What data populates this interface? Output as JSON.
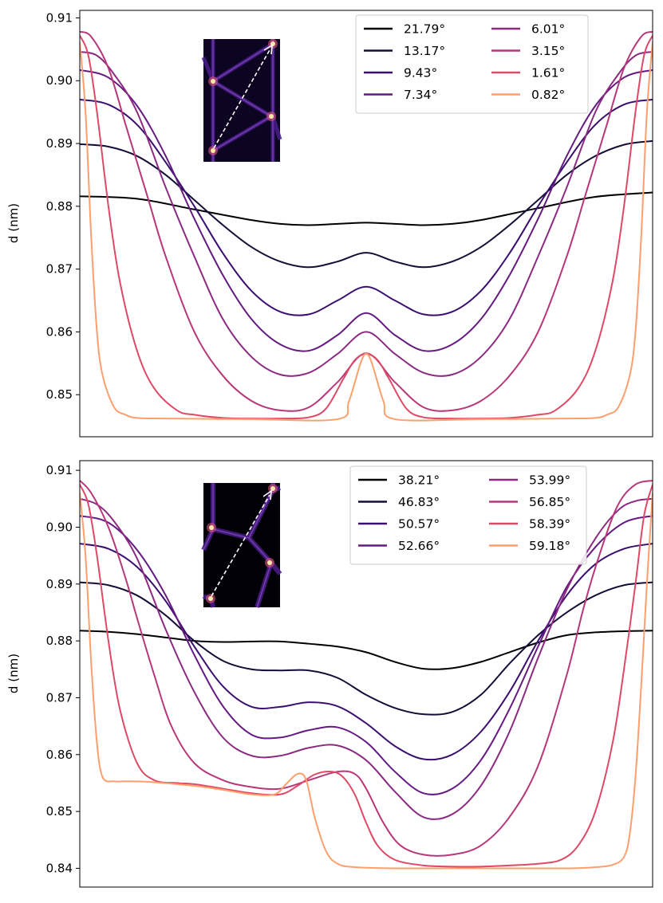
{
  "chart_data": [
    {
      "type": "line",
      "title": "",
      "xlabel": "",
      "ylabel": "d (nm)",
      "xlim": [
        0,
        1
      ],
      "ylim": [
        0.8433,
        0.9112
      ],
      "yticks": [
        "0.85",
        "0.86",
        "0.87",
        "0.88",
        "0.89",
        "0.90",
        "0.91"
      ],
      "show_xticks": false,
      "grid": false,
      "legend": {
        "placement": "top-right",
        "columns": 2
      },
      "inset": {
        "description": "",
        "placement": "top-left",
        "arrow": "dashed-white-diagonal"
      },
      "series": [
        {
          "name": "21.79°",
          "color": "#000004",
          "x": [
            0,
            0.1,
            0.2,
            0.3,
            0.35,
            0.4,
            0.45,
            0.5,
            0.55,
            0.6,
            0.65,
            0.7,
            0.8,
            0.9,
            1.0
          ],
          "y": [
            0.8816,
            0.8812,
            0.8795,
            0.8778,
            0.8772,
            0.877,
            0.8772,
            0.8774,
            0.8772,
            0.877,
            0.8772,
            0.8778,
            0.8797,
            0.8815,
            0.8822
          ]
        },
        {
          "name": "13.17°",
          "color": "#140e36",
          "x": [
            0,
            0.05,
            0.1,
            0.15,
            0.2,
            0.25,
            0.3,
            0.35,
            0.4,
            0.45,
            0.5,
            0.55,
            0.6,
            0.65,
            0.7,
            0.75,
            0.8,
            0.85,
            0.9,
            0.95,
            1.0
          ],
          "y": [
            0.8899,
            0.8895,
            0.888,
            0.885,
            0.881,
            0.877,
            0.8735,
            0.8712,
            0.8703,
            0.8712,
            0.8726,
            0.8712,
            0.8703,
            0.8712,
            0.8735,
            0.877,
            0.881,
            0.885,
            0.888,
            0.8898,
            0.8904
          ]
        },
        {
          "name": "9.43°",
          "color": "#3b0f70",
          "x": [
            0,
            0.05,
            0.1,
            0.15,
            0.2,
            0.25,
            0.3,
            0.35,
            0.4,
            0.45,
            0.5,
            0.55,
            0.6,
            0.65,
            0.7,
            0.75,
            0.8,
            0.85,
            0.9,
            0.95,
            1.0
          ],
          "y": [
            0.897,
            0.8962,
            0.893,
            0.887,
            0.88,
            0.8725,
            0.8665,
            0.8632,
            0.8628,
            0.865,
            0.8672,
            0.865,
            0.8628,
            0.8632,
            0.8665,
            0.8725,
            0.88,
            0.887,
            0.893,
            0.8962,
            0.897
          ]
        },
        {
          "name": "7.34°",
          "color": "#641a80",
          "x": [
            0,
            0.05,
            0.1,
            0.15,
            0.2,
            0.25,
            0.3,
            0.35,
            0.4,
            0.45,
            0.5,
            0.55,
            0.6,
            0.65,
            0.7,
            0.75,
            0.8,
            0.85,
            0.9,
            0.95,
            1.0
          ],
          "y": [
            0.9017,
            0.9005,
            0.896,
            0.888,
            0.878,
            0.869,
            0.862,
            0.858,
            0.857,
            0.8595,
            0.863,
            0.8595,
            0.857,
            0.858,
            0.862,
            0.869,
            0.878,
            0.888,
            0.896,
            0.9005,
            0.9017
          ]
        },
        {
          "name": "6.01°",
          "color": "#8c2981",
          "x": [
            0,
            0.03,
            0.06,
            0.1,
            0.15,
            0.2,
            0.25,
            0.3,
            0.35,
            0.4,
            0.45,
            0.5,
            0.55,
            0.6,
            0.65,
            0.7,
            0.75,
            0.8,
            0.85,
            0.9,
            0.94,
            0.97,
            1.0
          ],
          "y": [
            0.9046,
            0.904,
            0.901,
            0.895,
            0.883,
            0.872,
            0.862,
            0.856,
            0.8532,
            0.8535,
            0.8565,
            0.86,
            0.8565,
            0.8535,
            0.8532,
            0.856,
            0.862,
            0.872,
            0.883,
            0.895,
            0.901,
            0.904,
            0.9046
          ]
        },
        {
          "name": "3.15°",
          "color": "#b73779",
          "x": [
            0,
            0.02,
            0.05,
            0.08,
            0.1,
            0.12,
            0.15,
            0.2,
            0.25,
            0.3,
            0.35,
            0.4,
            0.45,
            0.5,
            0.55,
            0.6,
            0.65,
            0.7,
            0.75,
            0.8,
            0.85,
            0.88,
            0.9,
            0.92,
            0.95,
            0.98,
            1.0
          ],
          "y": [
            0.9078,
            0.907,
            0.902,
            0.893,
            0.887,
            0.881,
            0.872,
            0.86,
            0.853,
            0.849,
            0.8475,
            0.848,
            0.852,
            0.8566,
            0.852,
            0.848,
            0.8475,
            0.849,
            0.853,
            0.86,
            0.872,
            0.881,
            0.887,
            0.893,
            0.902,
            0.907,
            0.9078
          ]
        },
        {
          "name": "1.61°",
          "color": "#de4968",
          "x": [
            0,
            0.015,
            0.03,
            0.05,
            0.07,
            0.1,
            0.13,
            0.17,
            0.2,
            0.25,
            0.3,
            0.35,
            0.4,
            0.43,
            0.46,
            0.48,
            0.5,
            0.52,
            0.54,
            0.57,
            0.6,
            0.65,
            0.7,
            0.75,
            0.8,
            0.83,
            0.87,
            0.9,
            0.93,
            0.95,
            0.97,
            0.985,
            1.0
          ],
          "y": [
            0.9072,
            0.904,
            0.895,
            0.88,
            0.868,
            0.857,
            0.851,
            0.8475,
            0.8468,
            0.8463,
            0.8462,
            0.8462,
            0.8464,
            0.8478,
            0.8525,
            0.8555,
            0.8565,
            0.8555,
            0.8525,
            0.8478,
            0.8464,
            0.8462,
            0.8462,
            0.8463,
            0.8468,
            0.8475,
            0.851,
            0.857,
            0.868,
            0.88,
            0.895,
            0.904,
            0.9072
          ]
        },
        {
          "name": "0.82°",
          "color": "#fe9f6d",
          "x": [
            0,
            0.01,
            0.02,
            0.03,
            0.04,
            0.06,
            0.08,
            0.1,
            0.15,
            0.3,
            0.45,
            0.47,
            0.49,
            0.5,
            0.51,
            0.53,
            0.55,
            0.7,
            0.85,
            0.9,
            0.92,
            0.94,
            0.96,
            0.97,
            0.98,
            0.99,
            1.0
          ],
          "y": [
            0.906,
            0.895,
            0.875,
            0.86,
            0.853,
            0.848,
            0.8468,
            0.8463,
            0.8462,
            0.8461,
            0.8461,
            0.849,
            0.855,
            0.8565,
            0.855,
            0.849,
            0.8461,
            0.8461,
            0.8462,
            0.8463,
            0.8468,
            0.848,
            0.853,
            0.86,
            0.875,
            0.895,
            0.906
          ]
        }
      ]
    },
    {
      "type": "line",
      "title": "",
      "xlabel": "",
      "ylabel": "d (nm)",
      "xlim": [
        0,
        1
      ],
      "ylim": [
        0.8367,
        0.9117
      ],
      "yticks": [
        "0.84",
        "0.85",
        "0.86",
        "0.87",
        "0.88",
        "0.89",
        "0.90",
        "0.91"
      ],
      "show_xticks": false,
      "grid": false,
      "legend": {
        "placement": "top-right",
        "columns": 2
      },
      "inset": {
        "description": "",
        "placement": "top-left",
        "arrow": "dashed-white-diagonal"
      },
      "series": [
        {
          "name": "38.21°",
          "color": "#000004",
          "x": [
            0,
            0.05,
            0.1,
            0.15,
            0.2,
            0.25,
            0.3,
            0.35,
            0.4,
            0.45,
            0.5,
            0.55,
            0.6,
            0.65,
            0.7,
            0.75,
            0.8,
            0.85,
            0.9,
            0.95,
            1.0
          ],
          "y": [
            0.8818,
            0.8816,
            0.8812,
            0.8806,
            0.88,
            0.8798,
            0.8799,
            0.8799,
            0.8795,
            0.879,
            0.878,
            0.8763,
            0.8751,
            0.8752,
            0.8763,
            0.878,
            0.8797,
            0.881,
            0.8815,
            0.8817,
            0.8818
          ]
        },
        {
          "name": "46.83°",
          "color": "#140e36",
          "x": [
            0,
            0.05,
            0.1,
            0.15,
            0.2,
            0.25,
            0.3,
            0.35,
            0.4,
            0.45,
            0.5,
            0.55,
            0.6,
            0.65,
            0.7,
            0.75,
            0.8,
            0.85,
            0.9,
            0.95,
            1.0
          ],
          "y": [
            0.8903,
            0.8898,
            0.888,
            0.8845,
            0.88,
            0.8765,
            0.875,
            0.8748,
            0.8748,
            0.8735,
            0.8705,
            0.8682,
            0.8671,
            0.8675,
            0.8705,
            0.876,
            0.881,
            0.885,
            0.888,
            0.8898,
            0.8903
          ]
        },
        {
          "name": "50.57°",
          "color": "#3b0f70",
          "x": [
            0,
            0.05,
            0.1,
            0.15,
            0.2,
            0.25,
            0.3,
            0.35,
            0.4,
            0.45,
            0.5,
            0.55,
            0.6,
            0.65,
            0.7,
            0.75,
            0.8,
            0.85,
            0.9,
            0.95,
            1.0
          ],
          "y": [
            0.8971,
            0.8962,
            0.893,
            0.887,
            0.879,
            0.872,
            0.8684,
            0.8684,
            0.8692,
            0.8685,
            0.8655,
            0.8615,
            0.8592,
            0.86,
            0.864,
            0.871,
            0.88,
            0.888,
            0.8935,
            0.8962,
            0.8971
          ]
        },
        {
          "name": "52.66°",
          "color": "#641a80",
          "x": [
            0,
            0.05,
            0.1,
            0.15,
            0.2,
            0.25,
            0.3,
            0.35,
            0.4,
            0.45,
            0.5,
            0.55,
            0.6,
            0.65,
            0.7,
            0.75,
            0.8,
            0.85,
            0.9,
            0.95,
            1.0
          ],
          "y": [
            0.902,
            0.9008,
            0.896,
            0.888,
            0.8775,
            0.8685,
            0.8635,
            0.863,
            0.8643,
            0.8648,
            0.8622,
            0.857,
            0.8532,
            0.854,
            0.859,
            0.868,
            0.879,
            0.8895,
            0.8965,
            0.9008,
            0.902
          ]
        },
        {
          "name": "53.99°",
          "color": "#8c2981",
          "x": [
            0,
            0.03,
            0.06,
            0.1,
            0.15,
            0.2,
            0.25,
            0.3,
            0.35,
            0.4,
            0.45,
            0.5,
            0.55,
            0.6,
            0.65,
            0.7,
            0.75,
            0.8,
            0.85,
            0.9,
            0.94,
            0.97,
            1.0
          ],
          "y": [
            0.905,
            0.904,
            0.901,
            0.8945,
            0.882,
            0.871,
            0.863,
            0.8598,
            0.8598,
            0.8612,
            0.8616,
            0.859,
            0.8535,
            0.849,
            0.8495,
            0.8545,
            0.864,
            0.877,
            0.889,
            0.898,
            0.903,
            0.9046,
            0.905
          ]
        },
        {
          "name": "56.85°",
          "color": "#b73779",
          "x": [
            0,
            0.02,
            0.05,
            0.08,
            0.1,
            0.13,
            0.16,
            0.2,
            0.25,
            0.3,
            0.35,
            0.4,
            0.45,
            0.48,
            0.5,
            0.53,
            0.56,
            0.6,
            0.65,
            0.7,
            0.75,
            0.8,
            0.85,
            0.88,
            0.91,
            0.94,
            0.97,
            1.0
          ],
          "y": [
            0.9082,
            0.906,
            0.9,
            0.891,
            0.884,
            0.874,
            0.865,
            0.8585,
            0.8555,
            0.8543,
            0.854,
            0.8555,
            0.857,
            0.8566,
            0.854,
            0.848,
            0.844,
            0.8424,
            0.8424,
            0.844,
            0.849,
            0.858,
            0.874,
            0.886,
            0.896,
            0.904,
            0.9075,
            0.9082
          ]
        },
        {
          "name": "58.39°",
          "color": "#de4968",
          "x": [
            0,
            0.015,
            0.03,
            0.05,
            0.07,
            0.1,
            0.13,
            0.17,
            0.2,
            0.25,
            0.3,
            0.35,
            0.38,
            0.41,
            0.44,
            0.46,
            0.48,
            0.5,
            0.52,
            0.55,
            0.6,
            0.65,
            0.7,
            0.75,
            0.8,
            0.84,
            0.87,
            0.9,
            0.93,
            0.95,
            0.97,
            0.985,
            1.0
          ],
          "y": [
            0.9075,
            0.904,
            0.895,
            0.88,
            0.868,
            0.8585,
            0.8555,
            0.855,
            0.8548,
            0.854,
            0.8532,
            0.853,
            0.8545,
            0.8565,
            0.857,
            0.856,
            0.853,
            0.848,
            0.844,
            0.8415,
            0.8405,
            0.8403,
            0.8403,
            0.8405,
            0.8408,
            0.8415,
            0.844,
            0.85,
            0.862,
            0.875,
            0.89,
            0.902,
            0.9075
          ]
        },
        {
          "name": "59.18°",
          "color": "#fe9f6d",
          "x": [
            0,
            0.01,
            0.02,
            0.03,
            0.04,
            0.06,
            0.08,
            0.12,
            0.2,
            0.25,
            0.3,
            0.34,
            0.36,
            0.38,
            0.395,
            0.41,
            0.43,
            0.45,
            0.48,
            0.55,
            0.7,
            0.85,
            0.9,
            0.93,
            0.95,
            0.96,
            0.97,
            0.98,
            0.99,
            1.0
          ],
          "y": [
            0.906,
            0.895,
            0.876,
            0.862,
            0.856,
            0.8553,
            0.8553,
            0.8552,
            0.8545,
            0.8538,
            0.853,
            0.853,
            0.8548,
            0.8566,
            0.8556,
            0.849,
            0.843,
            0.8408,
            0.8402,
            0.84,
            0.84,
            0.84,
            0.8402,
            0.8406,
            0.842,
            0.846,
            0.856,
            0.872,
            0.89,
            0.906
          ]
        }
      ]
    }
  ]
}
